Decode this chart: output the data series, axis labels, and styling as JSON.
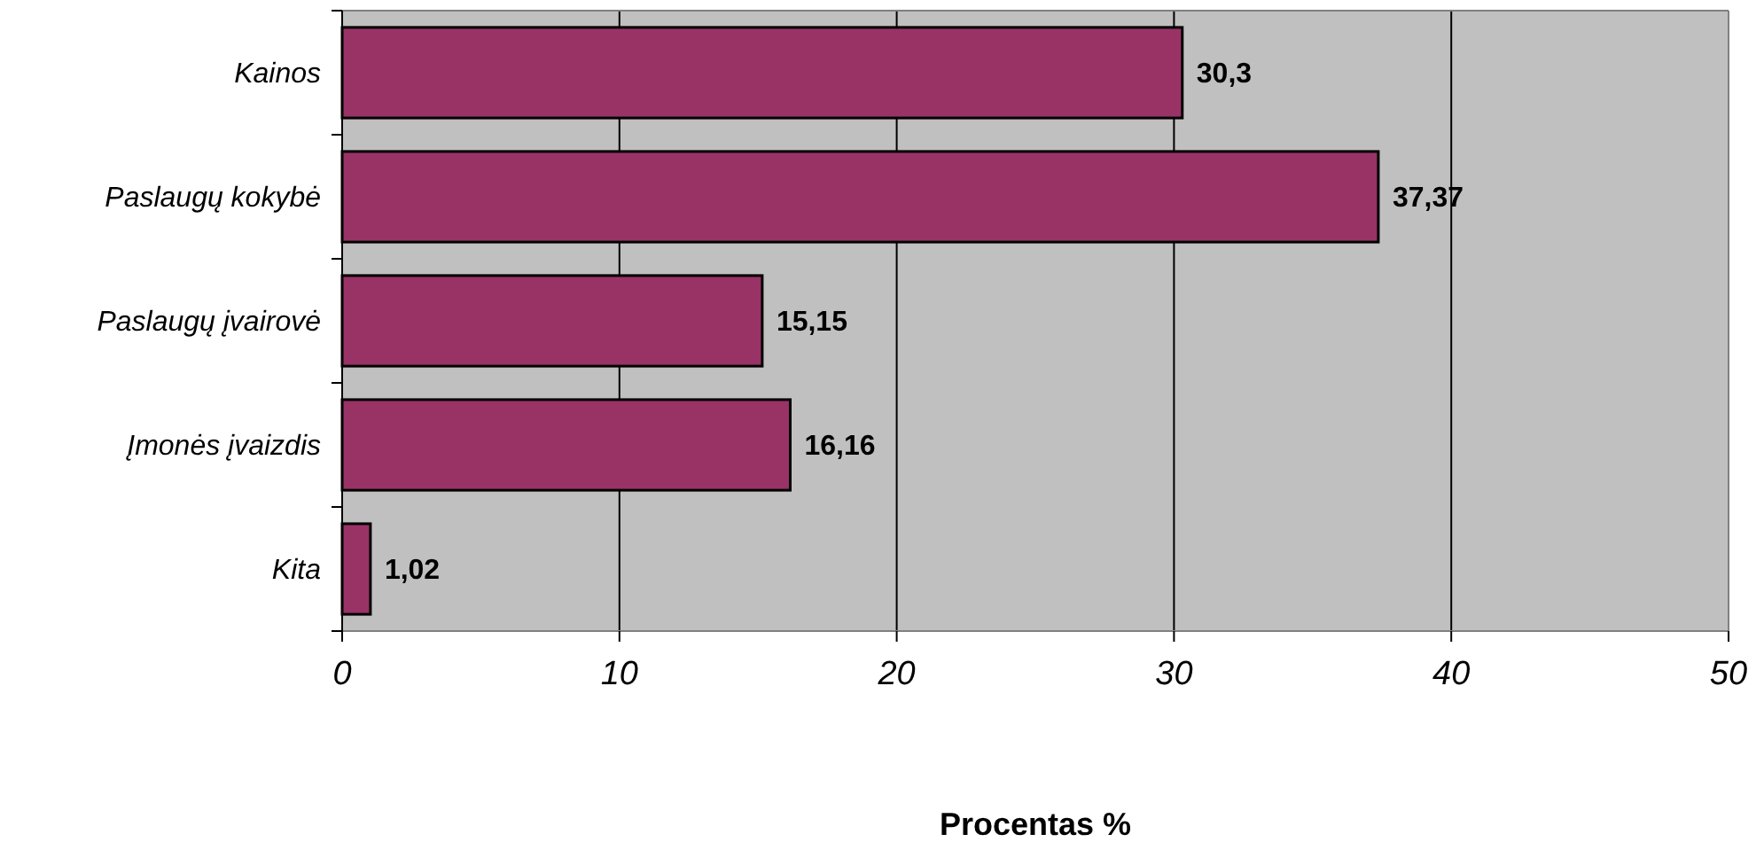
{
  "chart_data": {
    "type": "bar",
    "orientation": "horizontal",
    "xlabel": "Procentas %",
    "categories": [
      "Kainos",
      "Paslaugų kokybė",
      "Paslaugų įvairovė",
      "Įmonės įvaizdis",
      "Kita"
    ],
    "values": [
      30.3,
      37.37,
      15.15,
      16.16,
      1.02
    ],
    "value_labels": [
      "30,3",
      "37,37",
      "15,15",
      "16,16",
      "1,02"
    ],
    "color": "#993366",
    "xlim": [
      0,
      50
    ],
    "xticks": [
      0,
      10,
      20,
      30,
      40,
      50
    ],
    "grid": "x"
  }
}
